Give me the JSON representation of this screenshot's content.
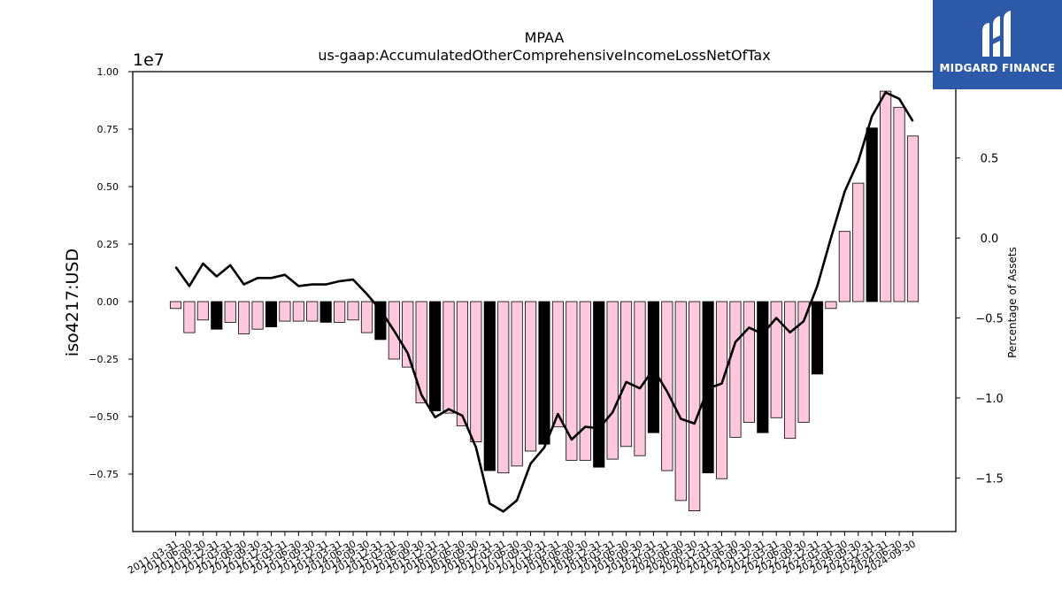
{
  "brand": {
    "logo_text": "MIDGARD FINANCE",
    "logo_color": "#2c5aa8"
  },
  "colors": {
    "bar_pink": "#ffc8dc",
    "bar_black": "#000000",
    "line": "#000000"
  },
  "chart_data": {
    "type": "bar",
    "title": "MPAA",
    "subtitle": "us-gaap:AccumulatedOtherComprehensiveIncomeLossNetOfTax",
    "ylabel": "iso4217:USD",
    "ylabel_right": "Percentage of Assets",
    "y_offset_label": "1e7",
    "ylim": [
      -1.0,
      1.0
    ],
    "yticks": [
      1.0,
      0.75,
      0.5,
      0.25,
      0.0,
      -0.25,
      -0.5,
      -0.75
    ],
    "ytick_labels": [
      "1.00",
      "0.75",
      "0.50",
      "0.25",
      "0.00",
      "−0.25",
      "−0.50",
      "−0.75"
    ],
    "ylim_right": [
      -1.835,
      1.04
    ],
    "yticks_right": [
      0.5,
      0.0,
      -0.5,
      -1.0,
      -1.5
    ],
    "ytick_labels_right": [
      "0.5",
      "0.0",
      "−0.5",
      "−1.0",
      "−1.5"
    ],
    "categories": [
      "2011-03-31",
      "2011-06-30",
      "2011-09-30",
      "2011-12-31",
      "2012-03-31",
      "2012-06-30",
      "2012-09-30",
      "2012-12-31",
      "2013-03-31",
      "2013-06-30",
      "2013-09-30",
      "2013-12-31",
      "2014-03-31",
      "2014-06-30",
      "2014-09-30",
      "2014-12-31",
      "2015-03-31",
      "2015-06-30",
      "2015-09-30",
      "2015-12-31",
      "2016-03-31",
      "2016-06-30",
      "2016-09-30",
      "2016-12-31",
      "2017-03-31",
      "2017-06-30",
      "2017-09-30",
      "2017-12-31",
      "2018-03-31",
      "2018-06-30",
      "2018-09-30",
      "2018-12-31",
      "2019-03-31",
      "2019-06-30",
      "2019-09-30",
      "2019-12-31",
      "2020-03-31",
      "2020-06-30",
      "2020-09-30",
      "2020-12-31",
      "2021-03-31",
      "2021-06-30",
      "2021-09-30",
      "2021-12-31",
      "2022-03-31",
      "2022-06-30",
      "2022-09-30",
      "2022-12-31",
      "2023-03-31",
      "2023-06-30",
      "2023-09-30",
      "2023-12-31",
      "2024-03-31",
      "2024-06-30",
      "2024-09-30"
    ],
    "series": [
      {
        "type": "bar",
        "values": [
          -0.03,
          -0.135,
          -0.08,
          -0.12,
          -0.09,
          -0.14,
          -0.12,
          -0.11,
          -0.085,
          -0.085,
          -0.085,
          -0.09,
          -0.09,
          -0.08,
          -0.135,
          -0.165,
          -0.25,
          -0.285,
          -0.44,
          -0.475,
          -0.485,
          -0.54,
          -0.61,
          -0.735,
          -0.745,
          -0.715,
          -0.65,
          -0.62,
          -0.545,
          -0.69,
          -0.69,
          -0.72,
          -0.685,
          -0.63,
          -0.67,
          -0.57,
          -0.735,
          -0.865,
          -0.91,
          -0.745,
          -0.77,
          -0.59,
          -0.525,
          -0.57,
          -0.505,
          -0.595,
          -0.525,
          -0.315,
          -0.03,
          0.305,
          0.515,
          0.755,
          0.915,
          0.845,
          0.72
        ],
        "is_year_end": [
          false,
          false,
          false,
          true,
          false,
          false,
          false,
          true,
          false,
          false,
          false,
          true,
          false,
          false,
          false,
          true,
          false,
          false,
          false,
          true,
          false,
          false,
          false,
          true,
          false,
          false,
          false,
          true,
          false,
          false,
          false,
          true,
          false,
          false,
          false,
          true,
          false,
          false,
          false,
          true,
          false,
          false,
          false,
          true,
          false,
          false,
          false,
          true,
          false,
          false,
          false,
          true,
          false,
          false,
          false
        ]
      },
      {
        "type": "line",
        "axis": "right",
        "values": [
          -0.18,
          -0.3,
          -0.16,
          -0.24,
          -0.17,
          -0.29,
          -0.25,
          -0.25,
          -0.23,
          -0.3,
          -0.29,
          -0.29,
          -0.27,
          -0.26,
          -0.35,
          -0.45,
          -0.58,
          -0.72,
          -0.98,
          -1.12,
          -1.07,
          -1.11,
          -1.31,
          -1.66,
          -1.71,
          -1.64,
          -1.41,
          -1.31,
          -1.1,
          -1.26,
          -1.18,
          -1.19,
          -1.09,
          -0.9,
          -0.94,
          -0.82,
          -0.96,
          -1.13,
          -1.16,
          -0.94,
          -0.91,
          -0.65,
          -0.56,
          -0.6,
          -0.5,
          -0.59,
          -0.52,
          -0.3,
          0.0,
          0.29,
          0.48,
          0.76,
          0.91,
          0.87,
          0.73
        ]
      }
    ]
  }
}
